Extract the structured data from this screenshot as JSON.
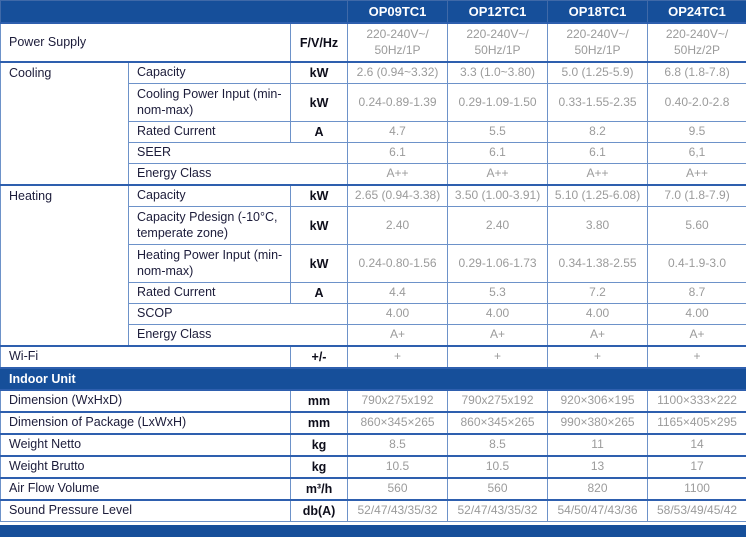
{
  "colors": {
    "brand_blue": "#164f9a",
    "grid_thin": "#6d92c9",
    "grid_thick": "#2e5fae",
    "value_text": "#9b9b9b",
    "label_text": "#1c1c3a"
  },
  "models": [
    "OP09TC1",
    "OP12TC1",
    "OP18TC1",
    "OP24TC1"
  ],
  "rows": [
    {
      "type": "main",
      "label": "Power Supply",
      "unit": "F/V/Hz",
      "h": "double",
      "thick": true,
      "values": [
        "220-240V~/\n50Hz/1P",
        "220-240V~/\n50Hz/1P",
        "220-240V~/\n50Hz/1P",
        "220-240V~/\n50Hz/2P"
      ]
    },
    {
      "type": "sub",
      "cat": "Cooling",
      "catSpan": 5,
      "label": "Capacity",
      "unit": "kW",
      "h": "single",
      "thick": true,
      "values": [
        "2.6 (0.94~3.32)",
        "3.3 (1.0~3.80)",
        "5.0 (1.25-5.9)",
        "6.8 (1.8-7.8)"
      ]
    },
    {
      "type": "sub",
      "label": "Cooling Power Input (min-nom-max)",
      "unit": "kW",
      "h": "double",
      "values": [
        "0.24-0.89-1.39",
        "0.29-1.09-1.50",
        "0.33-1.55-2.35",
        "0.40-2.0-2.8"
      ]
    },
    {
      "type": "sub",
      "label": "Rated Current",
      "unit": "A",
      "h": "single",
      "values": [
        "4.7",
        "5.5",
        "8.2",
        "9.5"
      ]
    },
    {
      "type": "subWide",
      "label": "SEER",
      "h": "single",
      "values": [
        "6.1",
        "6.1",
        "6.1",
        "6,1"
      ]
    },
    {
      "type": "subWide",
      "label": "Energy Class",
      "h": "single",
      "values": [
        "A++",
        "A++",
        "A++",
        "A++"
      ]
    },
    {
      "type": "sub",
      "cat": "Heating",
      "catSpan": 6,
      "label": "Capacity",
      "unit": "kW",
      "h": "single",
      "thick": true,
      "values": [
        "2.65 (0.94-3.38)",
        "3.50 (1.00-3.91)",
        "5.10 (1.25-6.08)",
        "7.0 (1.8-7.9)"
      ]
    },
    {
      "type": "sub",
      "label": "Capacity Pdesign (-10°C, temperate zone)",
      "unit": "kW",
      "h": "double",
      "values": [
        "2.40",
        "2.40",
        "3.80",
        "5.60"
      ]
    },
    {
      "type": "sub",
      "label": "Heating Power Input (min-nom-max)",
      "unit": "kW",
      "h": "double",
      "values": [
        "0.24-0.80-1.56",
        "0.29-1.06-1.73",
        "0.34-1.38-2.55",
        "0.4-1.9-3.0"
      ]
    },
    {
      "type": "sub",
      "label": "Rated Current",
      "unit": "A",
      "h": "single",
      "values": [
        "4.4",
        "5.3",
        "7.2",
        "8.7"
      ]
    },
    {
      "type": "subWide",
      "label": "SCOP",
      "h": "single",
      "values": [
        "4.00",
        "4.00",
        "4.00",
        "4.00"
      ]
    },
    {
      "type": "subWide",
      "label": "Energy Class",
      "h": "single",
      "values": [
        "A+",
        "A+",
        "A+",
        "A+"
      ]
    },
    {
      "type": "main",
      "label": "Wi-Fi",
      "unit": "+/-",
      "h": "single",
      "thick": true,
      "values": [
        "+",
        "+",
        "+",
        "+"
      ]
    },
    {
      "type": "section",
      "label": "Indoor Unit"
    },
    {
      "type": "main",
      "label": "Dimension (WxHxD)",
      "unit": "mm",
      "h": "single",
      "thick": true,
      "values": [
        "790x275x192",
        "790x275x192",
        "920×306×195",
        "1100×333×222"
      ]
    },
    {
      "type": "main",
      "label": "Dimension of Package (LxWxH)",
      "unit": "mm",
      "h": "single",
      "thick": true,
      "values": [
        "860×345×265",
        "860×345×265",
        "990×380×265",
        "1165×405×295"
      ]
    },
    {
      "type": "main",
      "label": "Weight Netto",
      "unit": "kg",
      "h": "single",
      "thick": true,
      "values": [
        "8.5",
        "8.5",
        "11",
        "14"
      ]
    },
    {
      "type": "main",
      "label": "Weight Brutto",
      "unit": "kg",
      "h": "single",
      "thick": true,
      "values": [
        "10.5",
        "10.5",
        "13",
        "17"
      ]
    },
    {
      "type": "main",
      "label": "Air Flow Volume",
      "unit": "m³/h",
      "h": "single",
      "thick": true,
      "values": [
        "560",
        "560",
        "820",
        "1100"
      ]
    },
    {
      "type": "main",
      "label": "Sound Pressure Level",
      "unit": "db(A)",
      "h": "single",
      "thick": true,
      "values": [
        "52/47/43/35/32",
        "52/47/43/35/32",
        "54/50/47/43/36",
        "58/53/49/45/42"
      ]
    }
  ]
}
